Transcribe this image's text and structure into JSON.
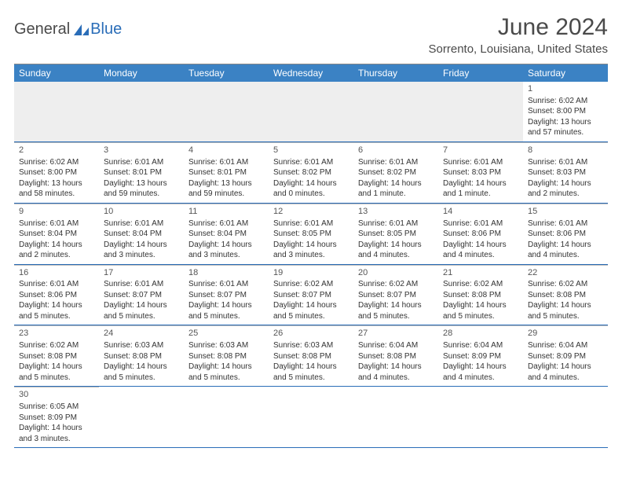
{
  "brand": {
    "dark": "General",
    "blue": "Blue"
  },
  "title": "June 2024",
  "location": "Sorrento, Louisiana, United States",
  "colors": {
    "header_bg": "#3b82c4",
    "header_text": "#ffffff",
    "rule": "#2a6db8",
    "brand_blue": "#2a6db8",
    "body_text": "#333333"
  },
  "weekdays": [
    "Sunday",
    "Monday",
    "Tuesday",
    "Wednesday",
    "Thursday",
    "Friday",
    "Saturday"
  ],
  "weeks": [
    [
      null,
      null,
      null,
      null,
      null,
      null,
      {
        "n": "1",
        "rise": "Sunrise: 6:02 AM",
        "set": "Sunset: 8:00 PM",
        "day": "Daylight: 13 hours and 57 minutes."
      }
    ],
    [
      {
        "n": "2",
        "rise": "Sunrise: 6:02 AM",
        "set": "Sunset: 8:00 PM",
        "day": "Daylight: 13 hours and 58 minutes."
      },
      {
        "n": "3",
        "rise": "Sunrise: 6:01 AM",
        "set": "Sunset: 8:01 PM",
        "day": "Daylight: 13 hours and 59 minutes."
      },
      {
        "n": "4",
        "rise": "Sunrise: 6:01 AM",
        "set": "Sunset: 8:01 PM",
        "day": "Daylight: 13 hours and 59 minutes."
      },
      {
        "n": "5",
        "rise": "Sunrise: 6:01 AM",
        "set": "Sunset: 8:02 PM",
        "day": "Daylight: 14 hours and 0 minutes."
      },
      {
        "n": "6",
        "rise": "Sunrise: 6:01 AM",
        "set": "Sunset: 8:02 PM",
        "day": "Daylight: 14 hours and 1 minute."
      },
      {
        "n": "7",
        "rise": "Sunrise: 6:01 AM",
        "set": "Sunset: 8:03 PM",
        "day": "Daylight: 14 hours and 1 minute."
      },
      {
        "n": "8",
        "rise": "Sunrise: 6:01 AM",
        "set": "Sunset: 8:03 PM",
        "day": "Daylight: 14 hours and 2 minutes."
      }
    ],
    [
      {
        "n": "9",
        "rise": "Sunrise: 6:01 AM",
        "set": "Sunset: 8:04 PM",
        "day": "Daylight: 14 hours and 2 minutes."
      },
      {
        "n": "10",
        "rise": "Sunrise: 6:01 AM",
        "set": "Sunset: 8:04 PM",
        "day": "Daylight: 14 hours and 3 minutes."
      },
      {
        "n": "11",
        "rise": "Sunrise: 6:01 AM",
        "set": "Sunset: 8:04 PM",
        "day": "Daylight: 14 hours and 3 minutes."
      },
      {
        "n": "12",
        "rise": "Sunrise: 6:01 AM",
        "set": "Sunset: 8:05 PM",
        "day": "Daylight: 14 hours and 3 minutes."
      },
      {
        "n": "13",
        "rise": "Sunrise: 6:01 AM",
        "set": "Sunset: 8:05 PM",
        "day": "Daylight: 14 hours and 4 minutes."
      },
      {
        "n": "14",
        "rise": "Sunrise: 6:01 AM",
        "set": "Sunset: 8:06 PM",
        "day": "Daylight: 14 hours and 4 minutes."
      },
      {
        "n": "15",
        "rise": "Sunrise: 6:01 AM",
        "set": "Sunset: 8:06 PM",
        "day": "Daylight: 14 hours and 4 minutes."
      }
    ],
    [
      {
        "n": "16",
        "rise": "Sunrise: 6:01 AM",
        "set": "Sunset: 8:06 PM",
        "day": "Daylight: 14 hours and 5 minutes."
      },
      {
        "n": "17",
        "rise": "Sunrise: 6:01 AM",
        "set": "Sunset: 8:07 PM",
        "day": "Daylight: 14 hours and 5 minutes."
      },
      {
        "n": "18",
        "rise": "Sunrise: 6:01 AM",
        "set": "Sunset: 8:07 PM",
        "day": "Daylight: 14 hours and 5 minutes."
      },
      {
        "n": "19",
        "rise": "Sunrise: 6:02 AM",
        "set": "Sunset: 8:07 PM",
        "day": "Daylight: 14 hours and 5 minutes."
      },
      {
        "n": "20",
        "rise": "Sunrise: 6:02 AM",
        "set": "Sunset: 8:07 PM",
        "day": "Daylight: 14 hours and 5 minutes."
      },
      {
        "n": "21",
        "rise": "Sunrise: 6:02 AM",
        "set": "Sunset: 8:08 PM",
        "day": "Daylight: 14 hours and 5 minutes."
      },
      {
        "n": "22",
        "rise": "Sunrise: 6:02 AM",
        "set": "Sunset: 8:08 PM",
        "day": "Daylight: 14 hours and 5 minutes."
      }
    ],
    [
      {
        "n": "23",
        "rise": "Sunrise: 6:02 AM",
        "set": "Sunset: 8:08 PM",
        "day": "Daylight: 14 hours and 5 minutes."
      },
      {
        "n": "24",
        "rise": "Sunrise: 6:03 AM",
        "set": "Sunset: 8:08 PM",
        "day": "Daylight: 14 hours and 5 minutes."
      },
      {
        "n": "25",
        "rise": "Sunrise: 6:03 AM",
        "set": "Sunset: 8:08 PM",
        "day": "Daylight: 14 hours and 5 minutes."
      },
      {
        "n": "26",
        "rise": "Sunrise: 6:03 AM",
        "set": "Sunset: 8:08 PM",
        "day": "Daylight: 14 hours and 5 minutes."
      },
      {
        "n": "27",
        "rise": "Sunrise: 6:04 AM",
        "set": "Sunset: 8:08 PM",
        "day": "Daylight: 14 hours and 4 minutes."
      },
      {
        "n": "28",
        "rise": "Sunrise: 6:04 AM",
        "set": "Sunset: 8:09 PM",
        "day": "Daylight: 14 hours and 4 minutes."
      },
      {
        "n": "29",
        "rise": "Sunrise: 6:04 AM",
        "set": "Sunset: 8:09 PM",
        "day": "Daylight: 14 hours and 4 minutes."
      }
    ],
    [
      {
        "n": "30",
        "rise": "Sunrise: 6:05 AM",
        "set": "Sunset: 8:09 PM",
        "day": "Daylight: 14 hours and 3 minutes."
      },
      null,
      null,
      null,
      null,
      null,
      null
    ]
  ]
}
